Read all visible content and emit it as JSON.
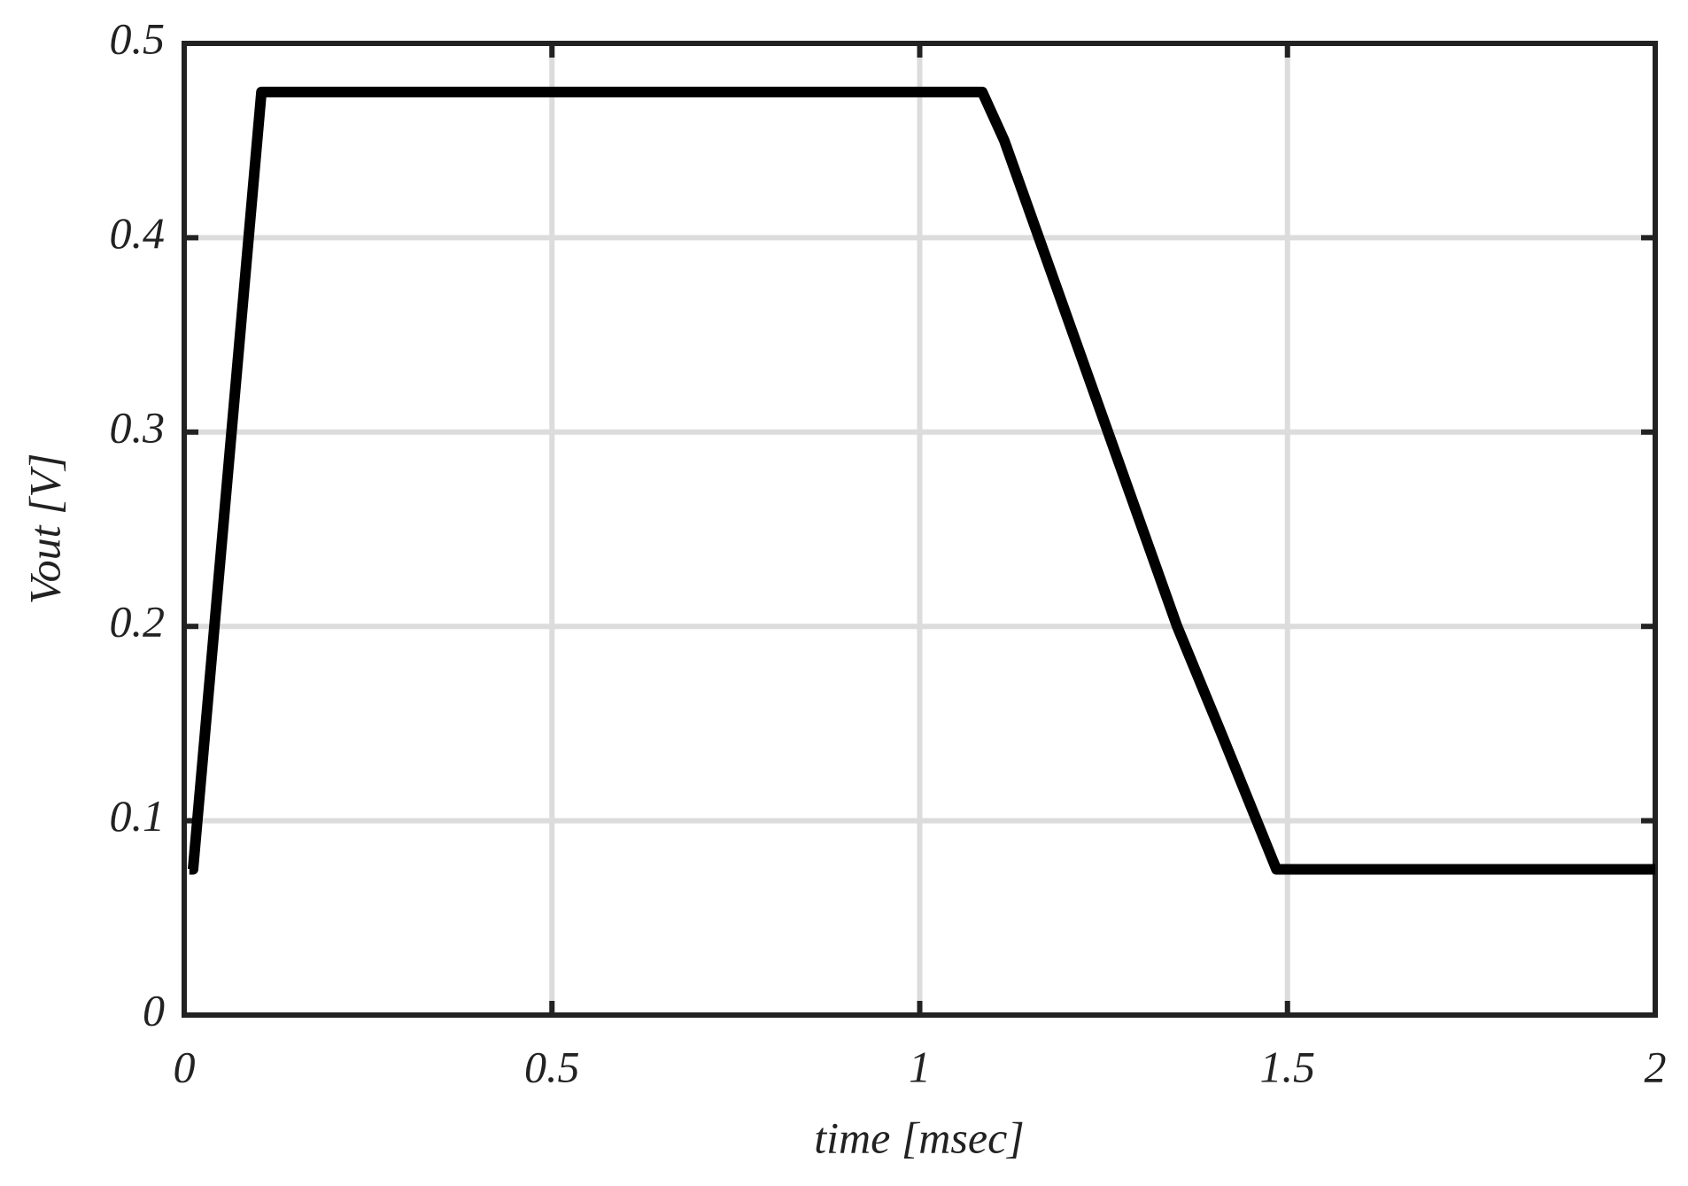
{
  "chart_data": {
    "type": "line",
    "x_label": "time [msec]",
    "y_label": "Vout [V]",
    "series": [
      {
        "color": "#000000",
        "x": [
          0.007,
          0.012,
          0.105,
          1.085,
          1.115,
          1.35,
          1.41,
          1.485,
          2
        ],
        "values": [
          0.075,
          0.075,
          0.475,
          0.475,
          0.45,
          0.2,
          0.145,
          0.075,
          0.075
        ]
      }
    ],
    "xlim": [
      0,
      2
    ],
    "xticks": [
      0,
      0.5,
      1,
      1.5,
      2
    ],
    "ylim": [
      0,
      0.5
    ],
    "yticks": [
      0,
      0.1,
      0.2,
      0.3,
      0.4,
      0.5
    ],
    "grid": true
  }
}
